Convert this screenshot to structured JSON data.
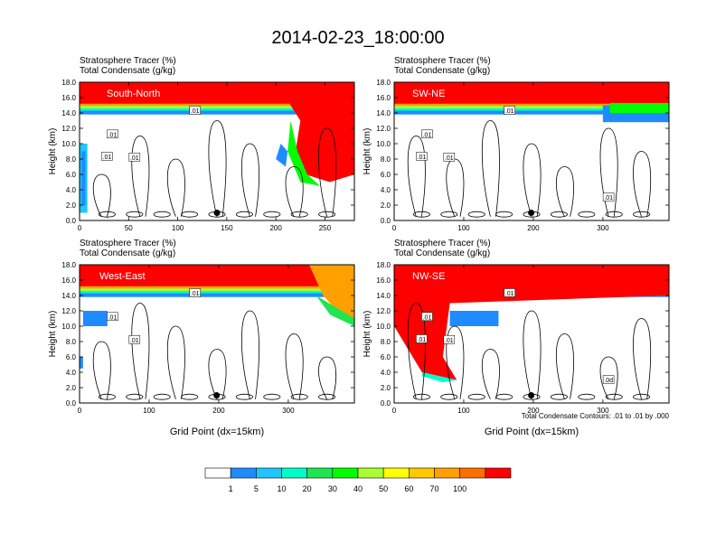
{
  "title": "2014-02-23_18:00:00",
  "colorbar": {
    "colors": [
      "#ffffff",
      "#1e8cff",
      "#1ec8ff",
      "#00ffc8",
      "#1ee650",
      "#00ff00",
      "#aaff30",
      "#ffff00",
      "#ffc800",
      "#ffa000",
      "#ff6e00",
      "#ff0000"
    ],
    "labels": [
      "1",
      "5",
      "10",
      "20",
      "30",
      "40",
      "50",
      "60",
      "70",
      "100"
    ]
  },
  "footnote": "Total Condensate Contours: .01 to .01 by .000",
  "chart_data": [
    {
      "type": "heatmap",
      "name": "South-North",
      "labels": [
        "Stratosphere Tracer   (%)",
        "Total Condensate   (g/kg)"
      ],
      "xlabel": "",
      "ylabel": "Height (km)",
      "xlim": [
        0,
        280
      ],
      "ylim": [
        0,
        18
      ],
      "xticks": [
        "0",
        "50",
        "100",
        "150",
        "200",
        "250"
      ],
      "yticks": [
        "0.0",
        "2.0",
        "4.0",
        "6.0",
        "8.0",
        "10.0",
        "12.0",
        "14.0",
        "16.0",
        "18.0"
      ],
      "contour_labels": [
        ".01",
        ".01",
        ".01",
        ".01"
      ],
      "marker": {
        "x": 140,
        "y": 1.0
      }
    },
    {
      "type": "heatmap",
      "name": "SW-NE",
      "labels": [
        "Stratosphere Tracer   (%)",
        "Total Condensate   (g/kg)"
      ],
      "xlabel": "",
      "ylabel": "Height (km)",
      "xlim": [
        0,
        395
      ],
      "ylim": [
        0,
        18
      ],
      "xticks": [
        "0",
        "100",
        "200",
        "300"
      ],
      "yticks": [
        "0.0",
        "2.0",
        "4.0",
        "6.0",
        "8.0",
        "10.0",
        "12.0",
        "14.0",
        "16.0",
        "18.0"
      ],
      "contour_labels": [
        ".01",
        ".01",
        ".01",
        ".01",
        ".01"
      ],
      "marker": {
        "x": 197,
        "y": 1.0
      }
    },
    {
      "type": "heatmap",
      "name": "West-East",
      "labels": [
        "Stratosphere Tracer   (%)",
        "Total Condensate   (g/kg)"
      ],
      "xlabel": "Grid Point (dx=15km)",
      "ylabel": "Height (km)",
      "xlim": [
        0,
        395
      ],
      "ylim": [
        0,
        18
      ],
      "xticks": [
        "0",
        "100",
        "200",
        "300"
      ],
      "yticks": [
        "0.0",
        "2.0",
        "4.0",
        "6.0",
        "8.0",
        "10.0",
        "12.0",
        "14.0",
        "16.0",
        "18.0"
      ],
      "contour_labels": [
        ".01",
        ".01",
        ".01"
      ],
      "marker": {
        "x": 197,
        "y": 1.0
      }
    },
    {
      "type": "heatmap",
      "name": "NW-SE",
      "labels": [
        "Stratosphere Tracer   (%)",
        "Total Condensate   (g/kg)"
      ],
      "xlabel": "Grid Point (dx=15km)",
      "ylabel": "Height (km)",
      "xlim": [
        0,
        395
      ],
      "ylim": [
        0,
        18
      ],
      "xticks": [
        "0",
        "100",
        "200",
        "300"
      ],
      "yticks": [
        "0.0",
        "2.0",
        "4.0",
        "6.0",
        "8.0",
        "10.0",
        "12.0",
        "14.0",
        "16.0",
        "18.0"
      ],
      "contour_labels": [
        ".01",
        ".01",
        ".01",
        ".01",
        ".0d"
      ],
      "marker": {
        "x": 197,
        "y": 1.0
      }
    }
  ]
}
